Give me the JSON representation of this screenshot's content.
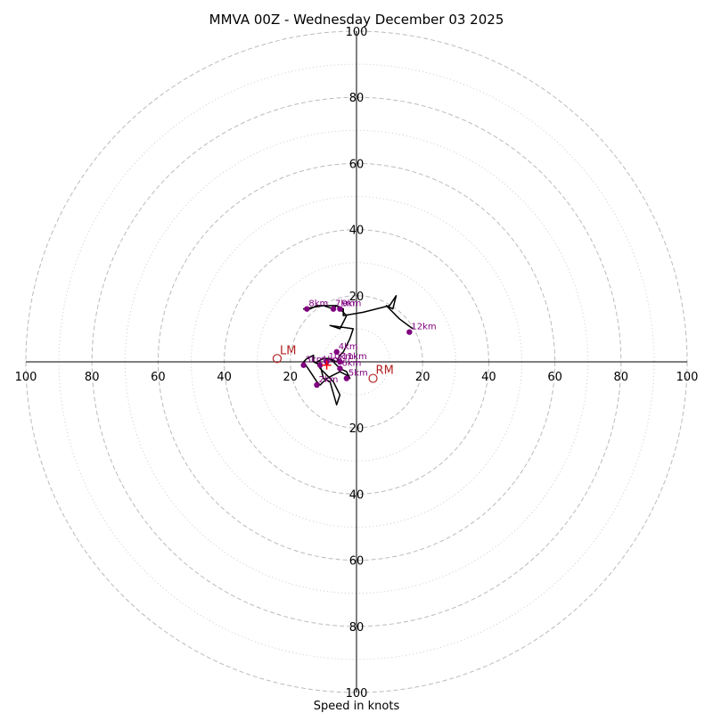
{
  "chart_data": {
    "type": "hodograph",
    "title": "MMVA 00Z - Wednesday December 03 2025",
    "xlabel": "Speed in knots",
    "max_speed": 100,
    "ring_major": [
      20,
      40,
      60,
      80,
      100
    ],
    "ring_minor": [
      10,
      30,
      50,
      70,
      90
    ],
    "ticks": {
      "top": [
        "20",
        "40",
        "60",
        "80",
        "100"
      ],
      "bottom": [
        "20",
        "40",
        "60",
        "80",
        "100"
      ],
      "left": [
        "20",
        "40",
        "60",
        "80",
        "100"
      ],
      "right": [
        "20",
        "40",
        "60",
        "80",
        "100"
      ]
    },
    "trace_u_v": [
      [
        -9,
        0
      ],
      [
        -8,
        1
      ],
      [
        -7,
        0
      ],
      [
        -6,
        -1
      ],
      [
        -5,
        -2
      ],
      [
        -3,
        -3
      ],
      [
        -2,
        -5
      ],
      [
        -3,
        -4
      ],
      [
        -5,
        -3
      ],
      [
        -7,
        -4
      ],
      [
        -9,
        -5
      ],
      [
        -11,
        -7
      ],
      [
        -12,
        -6
      ],
      [
        -14,
        -3
      ],
      [
        -16,
        0
      ],
      [
        -15,
        1
      ],
      [
        -13,
        2
      ],
      [
        -13,
        0
      ],
      [
        -11,
        -1
      ],
      [
        -10,
        -5
      ],
      [
        -8,
        -6
      ],
      [
        -6,
        -13
      ],
      [
        -5,
        -10
      ],
      [
        -7,
        -6
      ],
      [
        -9,
        -4
      ],
      [
        -11,
        -2
      ],
      [
        -12,
        0
      ],
      [
        -10,
        1
      ],
      [
        -8,
        1
      ],
      [
        -6,
        0
      ],
      [
        -5,
        2
      ],
      [
        -4,
        3
      ],
      [
        -3,
        5
      ],
      [
        -2,
        7
      ],
      [
        -1,
        10
      ],
      [
        -8,
        11
      ],
      [
        -5,
        10
      ],
      [
        -4,
        12
      ],
      [
        -3,
        14
      ],
      [
        -5,
        16
      ],
      [
        -6,
        17
      ],
      [
        -8,
        17
      ],
      [
        -12,
        17
      ],
      [
        -14,
        16
      ],
      [
        -16,
        16
      ],
      [
        -10,
        17
      ],
      [
        -7,
        16
      ],
      [
        -6,
        17
      ],
      [
        -4,
        16
      ],
      [
        -4,
        14
      ],
      [
        -4,
        14
      ],
      [
        2,
        15
      ],
      [
        10,
        17
      ],
      [
        12,
        20
      ],
      [
        11,
        16
      ],
      [
        9,
        17
      ],
      [
        13,
        13
      ],
      [
        17,
        10
      ]
    ],
    "height_markers": [
      {
        "label": "1km",
        "u": -11,
        "v": -1
      },
      {
        "label": "2km",
        "u": -12,
        "v": -7
      },
      {
        "label": "3km",
        "u": -16,
        "v": -1
      },
      {
        "label": "4km",
        "u": -6,
        "v": 3
      },
      {
        "label": "5km",
        "u": -3,
        "v": -5
      },
      {
        "label": "6km",
        "u": -5,
        "v": -2
      },
      {
        "label": "7km",
        "u": -7,
        "v": 16
      },
      {
        "label": "8km",
        "u": -15,
        "v": 16
      },
      {
        "label": "9km",
        "u": -5,
        "v": 16
      },
      {
        "label": "10km",
        "u": -9,
        "v": 0
      },
      {
        "label": "11km",
        "u": -5,
        "v": 0
      },
      {
        "label": "12km",
        "u": 16,
        "v": 9
      }
    ],
    "storm_motion": [
      {
        "label": "LM",
        "u": -24,
        "v": 1
      },
      {
        "label": "RM",
        "u": 5,
        "v": -5
      }
    ],
    "mean_wind": {
      "u": -9,
      "v": -1
    },
    "colors": {
      "trace": "#000000",
      "marker": "#800080",
      "storm_motion": "#b22222",
      "mean_wind": "#ff0000",
      "ring": "#bbbbbb",
      "minor_ring": "#cccccc",
      "axis": "#000000"
    }
  }
}
